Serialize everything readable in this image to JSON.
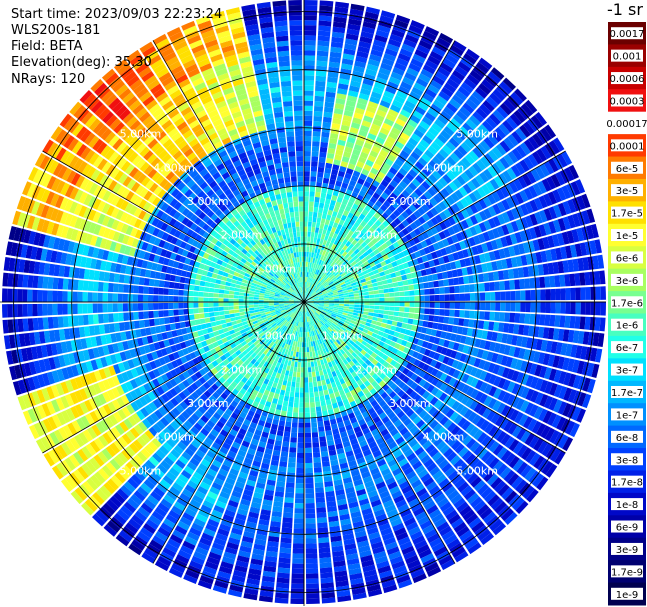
{
  "header": {
    "start_time": "Start time: 2023/09/03 22:23:24",
    "instrument": "WLS200s-181",
    "field": "Field: BETA",
    "elevation": "Elevation(deg): 35.30",
    "nrays": "NRays: 120"
  },
  "colorbar": {
    "unit": "-1 sr",
    "labels": [
      "0.0017",
      "0.001",
      "0.0006",
      "0.0003",
      "0.00017",
      "0.0001",
      "6e-5",
      "3e-5",
      "1.7e-5",
      "1e-5",
      "6e-6",
      "3e-6",
      "1.7e-6",
      "1e-6",
      "6e-7",
      "3e-7",
      "1.7e-7",
      "1e-7",
      "6e-8",
      "3e-8",
      "1.7e-8",
      "1e-8",
      "6e-9",
      "3e-9",
      "1.7e-9",
      "1e-9"
    ],
    "colors": [
      "#6b0000",
      "#9a0000",
      "#c80000",
      "#f01010",
      "#ffffff",
      "#ff3a00",
      "#ff7a00",
      "#ffb000",
      "#ffe000",
      "#ffff30",
      "#d8ff40",
      "#a8ff60",
      "#78ff90",
      "#48ffc0",
      "#20ffe8",
      "#00e0ff",
      "#00b8ff",
      "#0090ff",
      "#0068ff",
      "#0040ff",
      "#0020e8",
      "#0008c8",
      "#0000a8",
      "#000088",
      "#000070",
      "#000050"
    ]
  },
  "chart_data": {
    "type": "heatmap",
    "subtype": "polar-ppi",
    "field": "BETA",
    "nrays": 120,
    "range_rings_km": [
      1.0,
      2.0,
      3.0,
      4.0,
      5.0
    ],
    "max_range_km": 5.2,
    "spokes_deg": [
      0,
      30,
      60,
      90,
      120,
      150,
      180,
      210,
      240,
      270,
      300,
      330
    ],
    "ring_labels": [
      {
        "text": "1.00km",
        "ring": 1,
        "quadrant": "NW"
      },
      {
        "text": "1.00km",
        "ring": 1,
        "quadrant": "NE"
      },
      {
        "text": "1.00km",
        "ring": 1,
        "quadrant": "SW"
      },
      {
        "text": "1.00km",
        "ring": 1,
        "quadrant": "SE"
      },
      {
        "text": "2.00km",
        "ring": 2,
        "quadrant": "NW"
      },
      {
        "text": "2.00km",
        "ring": 2,
        "quadrant": "NE"
      },
      {
        "text": "2.00km",
        "ring": 2,
        "quadrant": "SW"
      },
      {
        "text": "2.00km",
        "ring": 2,
        "quadrant": "SE"
      },
      {
        "text": "3.00km",
        "ring": 3,
        "quadrant": "NW"
      },
      {
        "text": "3.00km",
        "ring": 3,
        "quadrant": "NE"
      },
      {
        "text": "3.00km",
        "ring": 3,
        "quadrant": "SW"
      },
      {
        "text": "3.00km",
        "ring": 3,
        "quadrant": "SE"
      },
      {
        "text": "4.00km",
        "ring": 4,
        "quadrant": "NW"
      },
      {
        "text": "4.00km",
        "ring": 4,
        "quadrant": "NE"
      },
      {
        "text": "4.00km",
        "ring": 4,
        "quadrant": "SW"
      },
      {
        "text": "4.00km",
        "ring": 4,
        "quadrant": "SE"
      },
      {
        "text": "5.00km",
        "ring": 5,
        "quadrant": "NW"
      },
      {
        "text": "5.00km",
        "ring": 5,
        "quadrant": "NE"
      },
      {
        "text": "5.00km",
        "ring": 5,
        "quadrant": "SW"
      },
      {
        "text": "5.00km",
        "ring": 5,
        "quadrant": "SE"
      }
    ],
    "color_scale": "log10 beta, 1e-9 to 0.0017 sr-1",
    "sectors": [
      {
        "azimuth_deg_range": [
          285,
          345
        ],
        "range_km": [
          3.0,
          5.2
        ],
        "level": "high (1e-5 to 6e-5, green-yellow-orange)"
      },
      {
        "azimuth_deg_range": [
          225,
          250
        ],
        "range_km": [
          3.5,
          5.0
        ],
        "level": "high (1.7e-6 to 3e-5)"
      },
      {
        "azimuth_deg_range": [
          10,
          30
        ],
        "range_km": [
          2.5,
          3.5
        ],
        "level": "moderate (6e-6 to 3e-5)"
      },
      {
        "azimuth_deg_range": [
          0,
          360
        ],
        "range_km": [
          0.0,
          2.0
        ],
        "level": "low (3e-8 to 1e-7, cyan-blue)"
      },
      {
        "azimuth_deg_range": [
          60,
          200
        ],
        "range_km": [
          3.0,
          5.2
        ],
        "level": "very low (1e-8 to 6e-8, blue)"
      }
    ]
  }
}
